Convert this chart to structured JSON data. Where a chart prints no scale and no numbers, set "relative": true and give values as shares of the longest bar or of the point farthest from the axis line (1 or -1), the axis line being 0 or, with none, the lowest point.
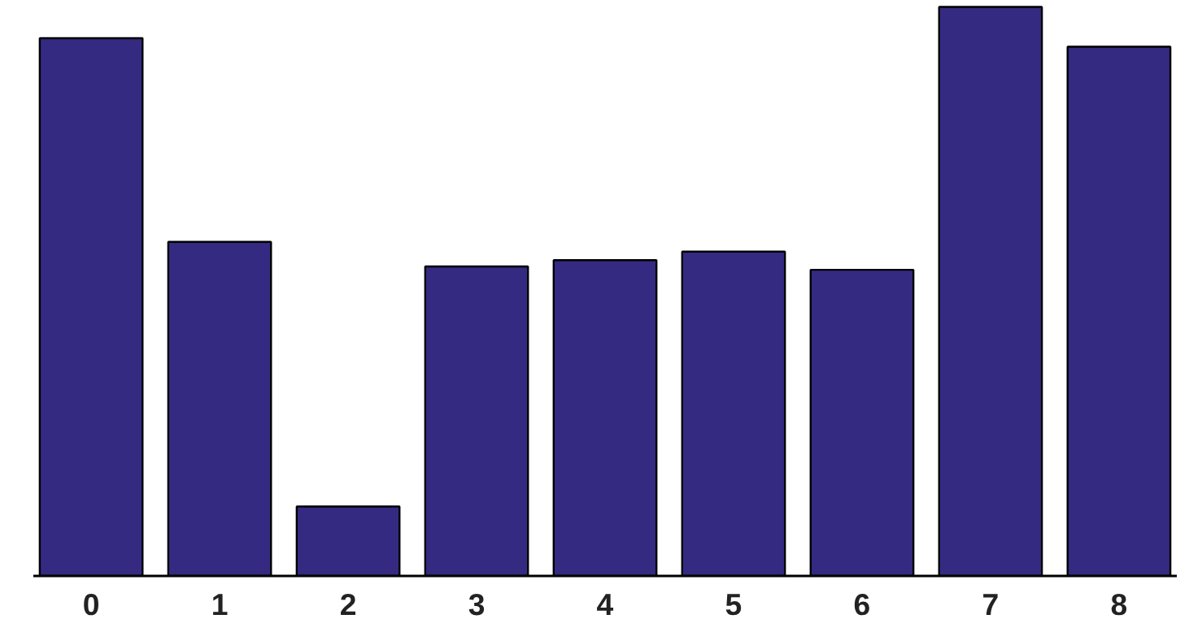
{
  "chart_data": {
    "type": "bar",
    "relative": true,
    "categories": [
      "0",
      "1",
      "2",
      "3",
      "4",
      "5",
      "6",
      "7",
      "8"
    ],
    "values": [
      0.945,
      0.587,
      0.122,
      0.544,
      0.555,
      0.57,
      0.538,
      1,
      0.93
    ],
    "color": "#352a82"
  }
}
